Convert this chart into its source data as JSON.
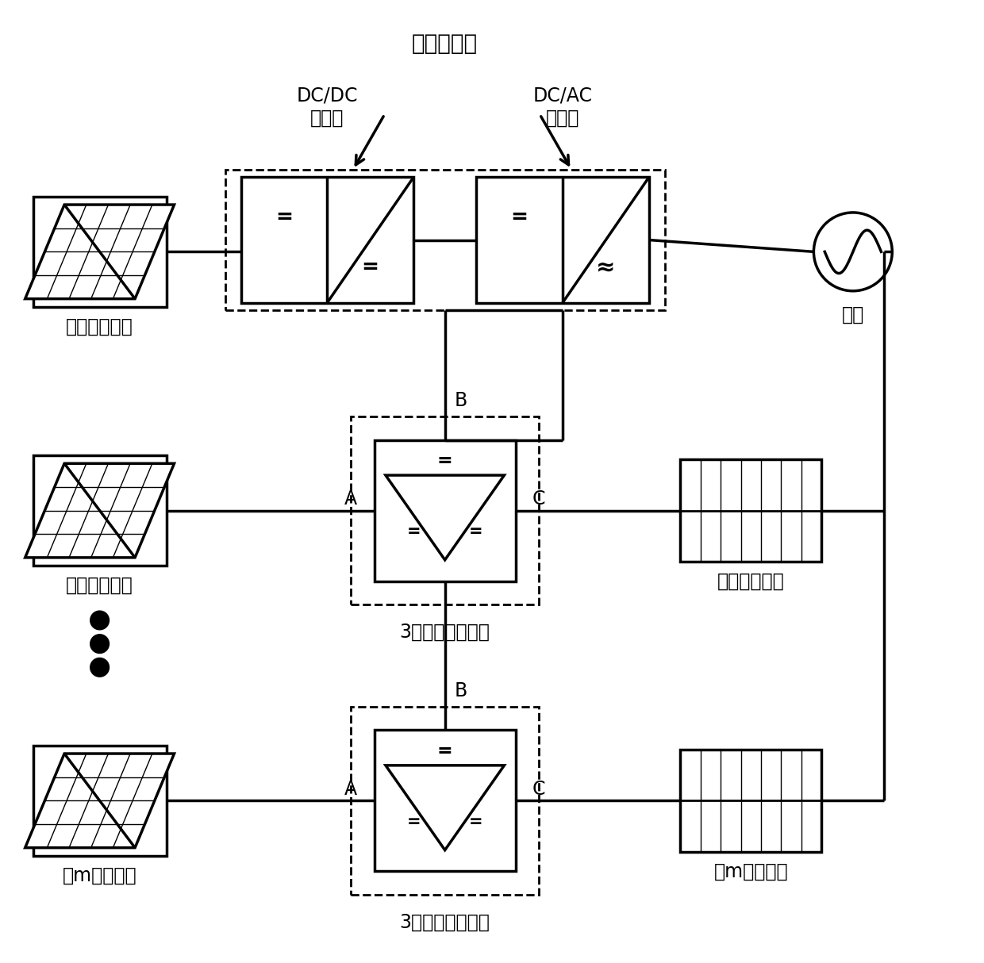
{
  "background_color": "#ffffff",
  "labels": {
    "dc_dc": "DC/DC\n变换器",
    "dc_ac": "DC/AC\n逆变器",
    "pv_inverter": "光伏逆变器",
    "grid": "电网",
    "pv1": "第一光伏阵列",
    "pv2": "第二光伏阵列",
    "pvm": "第m光伏阵列",
    "bat1": "第一储能电池",
    "batm": "第m储能电池",
    "converter": "3端口储能变换器",
    "A": "A",
    "B": "B",
    "C": "C"
  },
  "lw_thick": 2.5,
  "lw_med": 2.0,
  "lw_thin": 1.0,
  "fs_title": 20,
  "fs_label": 17,
  "fs_small": 15
}
